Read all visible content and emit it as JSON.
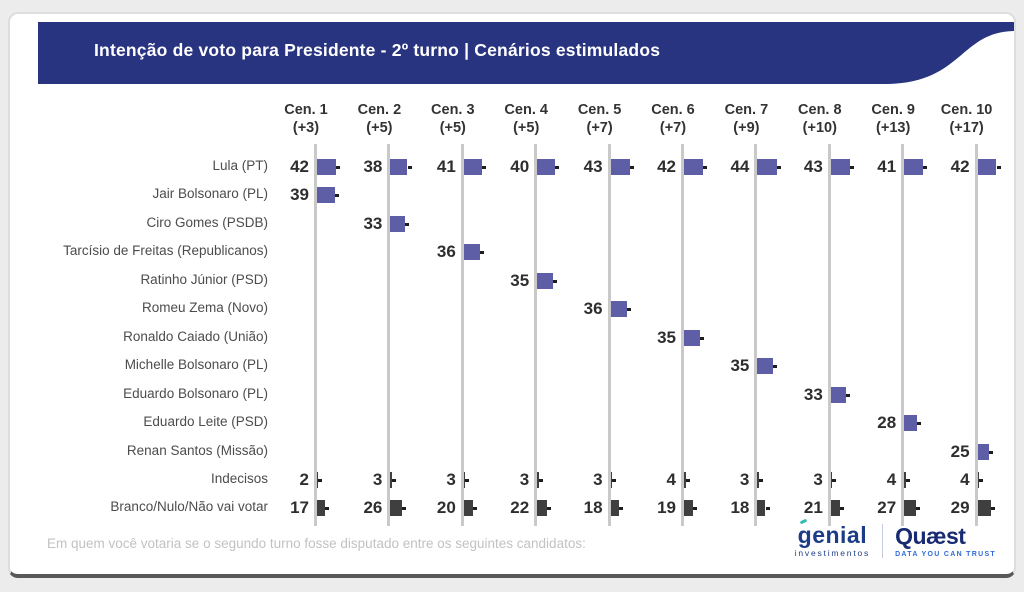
{
  "header": {
    "title": "Intenção de voto para Presidente - 2º turno | Cenários estimulados"
  },
  "chart_data": {
    "type": "bar",
    "title": "Intenção de voto para Presidente - 2º turno | Cenários estimulados",
    "unit": "%",
    "orientation": "horizontal-mini-bars",
    "legend_position": "none",
    "grid": "vertical-baselines-per-scenario",
    "scenarios": [
      {
        "label": "Cen. 1",
        "sub": "(+3)"
      },
      {
        "label": "Cen. 2",
        "sub": "(+5)"
      },
      {
        "label": "Cen. 3",
        "sub": "(+5)"
      },
      {
        "label": "Cen. 4",
        "sub": "(+5)"
      },
      {
        "label": "Cen. 5",
        "sub": "(+7)"
      },
      {
        "label": "Cen. 6",
        "sub": "(+7)"
      },
      {
        "label": "Cen. 7",
        "sub": "(+9)"
      },
      {
        "label": "Cen. 8",
        "sub": "(+10)"
      },
      {
        "label": "Cen. 9",
        "sub": "(+13)"
      },
      {
        "label": "Cen. 10",
        "sub": "(+17)"
      }
    ],
    "rows": [
      {
        "label": "Lula (PT)",
        "color": "purple",
        "values": [
          42,
          38,
          41,
          40,
          43,
          42,
          44,
          43,
          41,
          42
        ]
      },
      {
        "label": "Jair Bolsonaro (PL)",
        "color": "purple",
        "values": [
          39,
          null,
          null,
          null,
          null,
          null,
          null,
          null,
          null,
          null
        ]
      },
      {
        "label": "Ciro Gomes (PSDB)",
        "color": "purple",
        "values": [
          null,
          33,
          null,
          null,
          null,
          null,
          null,
          null,
          null,
          null
        ]
      },
      {
        "label": "Tarcísio de Freitas (Republicanos)",
        "color": "purple",
        "values": [
          null,
          null,
          36,
          null,
          null,
          null,
          null,
          null,
          null,
          null
        ]
      },
      {
        "label": "Ratinho Júnior (PSD)",
        "color": "purple",
        "values": [
          null,
          null,
          null,
          35,
          null,
          null,
          null,
          null,
          null,
          null
        ]
      },
      {
        "label": "Romeu Zema (Novo)",
        "color": "purple",
        "values": [
          null,
          null,
          null,
          null,
          36,
          null,
          null,
          null,
          null,
          null
        ]
      },
      {
        "label": "Ronaldo Caiado (União)",
        "color": "purple",
        "values": [
          null,
          null,
          null,
          null,
          null,
          35,
          null,
          null,
          null,
          null
        ]
      },
      {
        "label": "Michelle Bolsonaro (PL)",
        "color": "purple",
        "values": [
          null,
          null,
          null,
          null,
          null,
          null,
          35,
          null,
          null,
          null
        ]
      },
      {
        "label": "Eduardo Bolsonaro (PL)",
        "color": "purple",
        "values": [
          null,
          null,
          null,
          null,
          null,
          null,
          null,
          33,
          null,
          null
        ]
      },
      {
        "label": "Eduardo Leite (PSD)",
        "color": "purple",
        "values": [
          null,
          null,
          null,
          null,
          null,
          null,
          null,
          null,
          28,
          null
        ]
      },
      {
        "label": "Renan Santos (Missão)",
        "color": "purple",
        "values": [
          null,
          null,
          null,
          null,
          null,
          null,
          null,
          null,
          null,
          25
        ]
      },
      {
        "label": "Indecisos",
        "color": "dark",
        "values": [
          2,
          3,
          3,
          3,
          3,
          4,
          3,
          3,
          4,
          4
        ]
      },
      {
        "label": "Branco/Nulo/Não vai votar",
        "color": "dark",
        "values": [
          17,
          26,
          20,
          22,
          18,
          19,
          18,
          21,
          27,
          29
        ]
      }
    ]
  },
  "colors": {
    "header_navy": "#293480",
    "bar_purple": "#5d5ea6",
    "bar_dark": "#3f3f3f",
    "gridline": "#c9c9c9",
    "genial_navy": "#1d3c87",
    "genial_teal": "#33b9b4",
    "quaest_navy": "#172a72",
    "quaest_blue": "#2f6bd9"
  },
  "footer": {
    "question": "Em quem você votaria se o segundo turno fosse disputado entre os seguintes candidatos:",
    "genial_name": "genial",
    "genial_sub": "investimentos",
    "quaest_name": "Quæst",
    "quaest_sub": "DATA YOU CAN TRUST"
  }
}
